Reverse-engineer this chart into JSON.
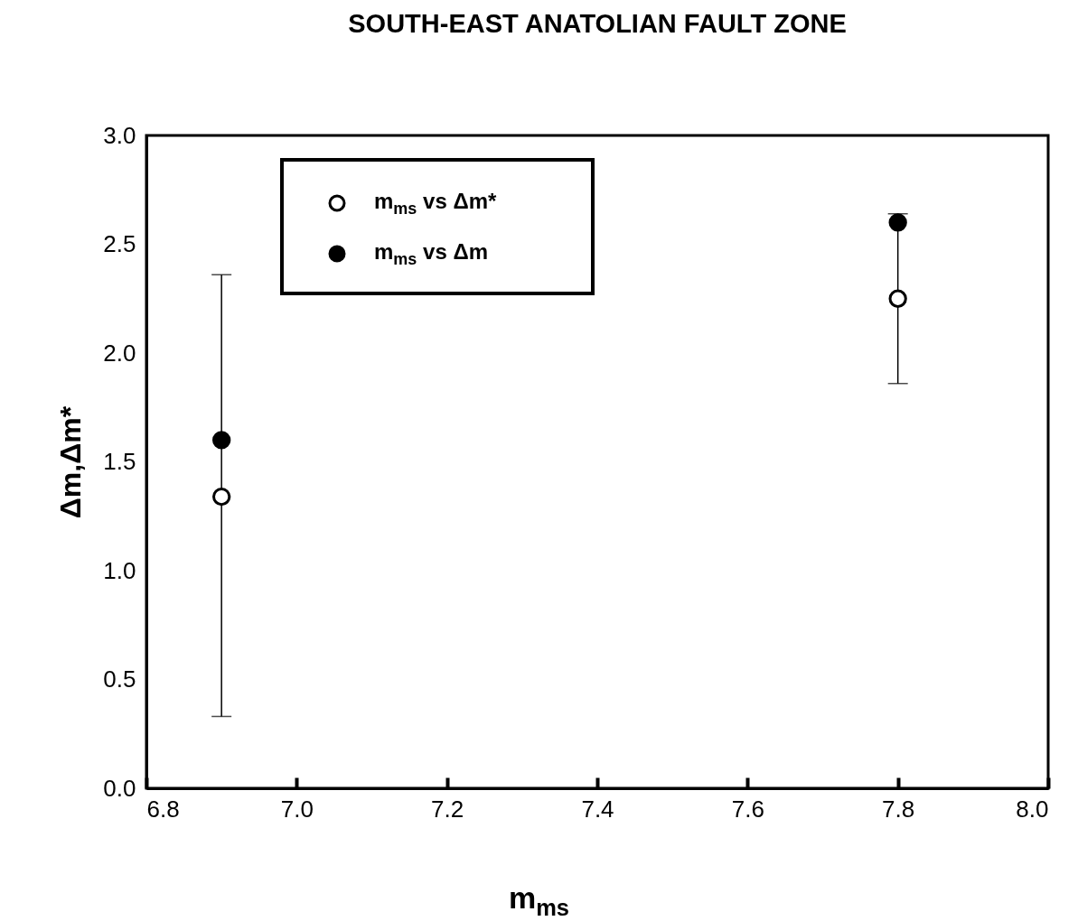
{
  "chart_data": {
    "type": "scatter",
    "title": "SOUTH-EAST ANATOLIAN FAULT ZONE",
    "xlabel": "m$_{ms}$",
    "ylabel": "Δm,Δm*",
    "x": [
      6.9,
      7.8
    ],
    "series": [
      {
        "name": "m$_{ms}$ vs Δm*",
        "color": "#ffffff",
        "values": [
          1.34,
          2.25
        ],
        "errors": [
          [
            0.33,
            2.36
          ],
          [
            1.86,
            2.64
          ]
        ]
      },
      {
        "name": "m$_{ms}$ vs Δm",
        "color": "#000000",
        "values": [
          1.6,
          2.6
        ]
      }
    ],
    "xlim": [
      6.8,
      8.0
    ],
    "xticks": [
      {
        "value": 6.8,
        "label": "6.8"
      },
      {
        "value": 7.0,
        "label": "7.0"
      },
      7.2,
      7.4,
      7.6,
      7.8,
      {
        "value": 8.0,
        "label": "8.0"
      }
    ],
    "ylim": [
      0,
      3
    ],
    "yticks": [
      {
        "value": 0,
        "label": "0.0"
      },
      0.5,
      {
        "value": 1,
        "label": "1.0"
      },
      1.5,
      {
        "value": 2,
        "label": "2.0"
      },
      2.5,
      {
        "value": 3,
        "label": "3.0"
      }
    ],
    "marker": "circle",
    "legend": "top left",
    "grid": false
  }
}
